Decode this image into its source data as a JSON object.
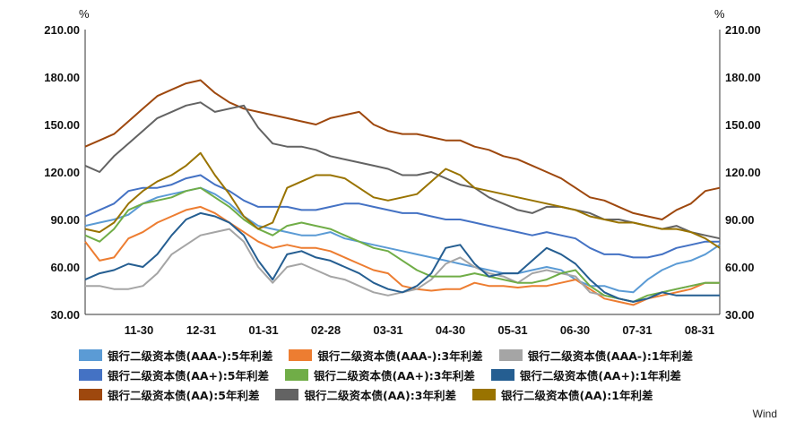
{
  "chart_data": {
    "type": "line",
    "unit_left": "%",
    "unit_right": "%",
    "ylim": [
      30,
      210
    ],
    "yticks": [
      "30.00",
      "60.00",
      "90.00",
      "120.00",
      "150.00",
      "180.00",
      "210.00"
    ],
    "xticks": [
      "11-30",
      "12-31",
      "01-31",
      "02-28",
      "03-31",
      "04-30",
      "05-31",
      "06-30",
      "07-31",
      "08-31"
    ],
    "source": "Wind",
    "series": [
      {
        "name": "银行二级资本债(AAA-):5年利差",
        "color": "#5B9BD5",
        "values": [
          86,
          88,
          90,
          93,
          100,
          104,
          106,
          108,
          110,
          106,
          100,
          92,
          86,
          84,
          82,
          80,
          80,
          82,
          78,
          76,
          74,
          72,
          70,
          68,
          66,
          64,
          62,
          60,
          58,
          56,
          56,
          58,
          60,
          58,
          52,
          48,
          48,
          45,
          44,
          52,
          58,
          62,
          64,
          68,
          74
        ]
      },
      {
        "name": "银行二级资本债(AAA-):3年利差",
        "color": "#ED7D31",
        "values": [
          76,
          64,
          66,
          78,
          82,
          88,
          92,
          96,
          98,
          94,
          88,
          82,
          76,
          72,
          74,
          72,
          72,
          70,
          66,
          62,
          58,
          56,
          48,
          46,
          45,
          46,
          46,
          50,
          48,
          48,
          47,
          48,
          48,
          50,
          52,
          46,
          40,
          38,
          36,
          40,
          42,
          44,
          46,
          50,
          50
        ]
      },
      {
        "name": "银行二级资本债(AAA-):1年利差",
        "color": "#A5A5A5",
        "values": [
          48,
          48,
          46,
          46,
          48,
          56,
          68,
          74,
          80,
          82,
          84,
          76,
          60,
          50,
          60,
          62,
          58,
          54,
          52,
          48,
          44,
          42,
          44,
          46,
          52,
          62,
          66,
          60,
          56,
          54,
          50,
          56,
          58,
          56,
          54,
          44,
          42,
          40,
          38,
          40,
          44,
          46,
          48,
          50,
          50
        ]
      },
      {
        "name": "银行二级资本债(AA+):5年利差",
        "color": "#4472C4",
        "values": [
          92,
          96,
          100,
          108,
          110,
          110,
          112,
          116,
          118,
          112,
          108,
          102,
          98,
          98,
          98,
          96,
          96,
          98,
          100,
          100,
          98,
          96,
          94,
          94,
          92,
          90,
          90,
          88,
          86,
          84,
          82,
          80,
          82,
          80,
          78,
          72,
          68,
          68,
          66,
          66,
          68,
          72,
          74,
          76,
          76
        ]
      },
      {
        "name": "银行二级资本债(AA+):3年利差",
        "color": "#70AD47",
        "values": [
          80,
          76,
          84,
          96,
          100,
          102,
          104,
          108,
          110,
          104,
          98,
          90,
          84,
          80,
          86,
          88,
          86,
          84,
          80,
          76,
          72,
          70,
          64,
          58,
          54,
          54,
          54,
          56,
          54,
          52,
          50,
          50,
          52,
          56,
          58,
          48,
          42,
          40,
          38,
          42,
          44,
          46,
          48,
          50,
          50
        ]
      },
      {
        "name": "银行二级资本债(AA+):1年利差",
        "color": "#255E91",
        "values": [
          52,
          56,
          58,
          62,
          60,
          68,
          80,
          90,
          94,
          92,
          88,
          80,
          64,
          52,
          68,
          70,
          66,
          64,
          60,
          56,
          50,
          46,
          44,
          48,
          56,
          72,
          74,
          62,
          54,
          56,
          56,
          64,
          72,
          68,
          62,
          52,
          44,
          40,
          38,
          40,
          44,
          42,
          42,
          42,
          42
        ]
      },
      {
        "name": "银行二级资本债(AA):5年利差",
        "color": "#9E480E",
        "values": [
          136,
          140,
          144,
          152,
          160,
          168,
          172,
          176,
          178,
          170,
          164,
          160,
          158,
          156,
          154,
          152,
          150,
          154,
          156,
          158,
          150,
          146,
          144,
          144,
          142,
          140,
          140,
          136,
          134,
          130,
          128,
          124,
          120,
          116,
          110,
          104,
          102,
          98,
          94,
          92,
          90,
          96,
          100,
          108,
          110
        ]
      },
      {
        "name": "银行二级资本债(AA):3年利差",
        "color": "#636363",
        "values": [
          124,
          120,
          130,
          138,
          146,
          154,
          158,
          162,
          164,
          158,
          160,
          162,
          148,
          138,
          136,
          136,
          134,
          130,
          128,
          126,
          124,
          122,
          118,
          118,
          120,
          116,
          112,
          110,
          104,
          100,
          96,
          94,
          98,
          98,
          96,
          94,
          90,
          90,
          88,
          86,
          84,
          86,
          82,
          80,
          78
        ]
      },
      {
        "name": "银行二级资本债(AA):1年利差",
        "color": "#997300",
        "values": [
          84,
          82,
          88,
          100,
          108,
          114,
          118,
          124,
          132,
          118,
          106,
          92,
          84,
          88,
          110,
          114,
          118,
          118,
          116,
          110,
          104,
          102,
          104,
          106,
          114,
          122,
          118,
          110,
          108,
          106,
          104,
          102,
          100,
          98,
          96,
          92,
          90,
          88,
          88,
          86,
          84,
          84,
          82,
          78,
          72
        ]
      }
    ]
  }
}
